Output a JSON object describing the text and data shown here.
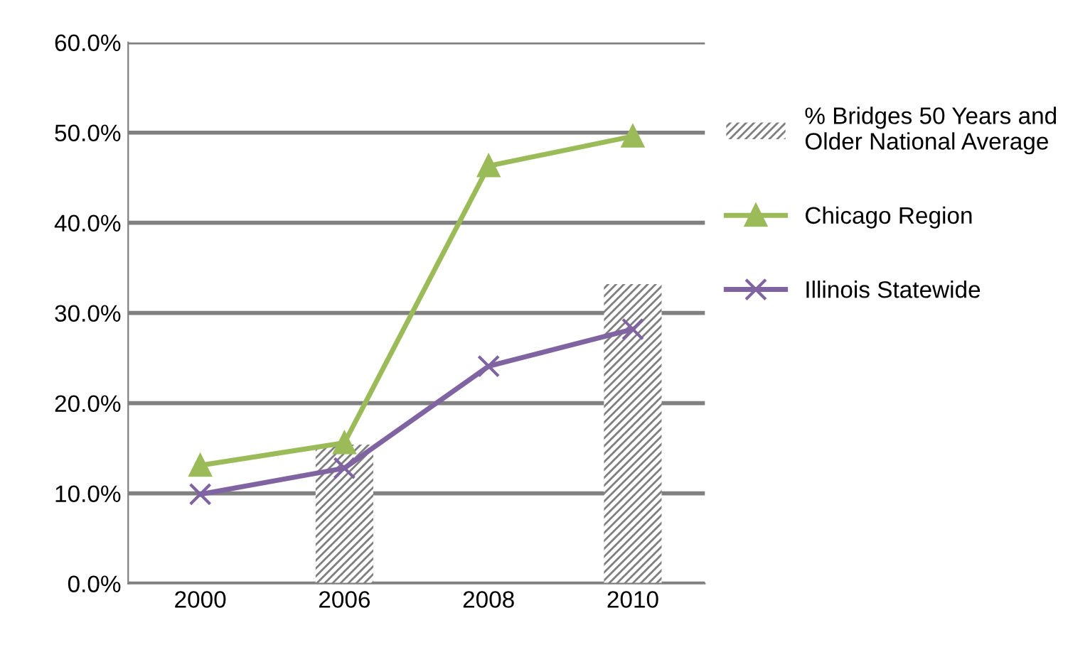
{
  "chart_data": {
    "type": "line",
    "categories": [
      "2000",
      "2006",
      "2008",
      "2010"
    ],
    "series": [
      {
        "name": "% Bridges 50 Years and Older National Average",
        "type": "bar",
        "color": "#7f7f7f",
        "values": [
          null,
          15.4,
          null,
          33.2
        ]
      },
      {
        "name": "Chicago Region",
        "color": "#9bbb59",
        "marker": "triangle",
        "values": [
          13.1,
          15.6,
          46.3,
          49.6
        ]
      },
      {
        "name": "Illinois Statewide",
        "color": "#8064a2",
        "marker": "cross",
        "values": [
          9.9,
          12.8,
          24.1,
          28.2
        ]
      }
    ],
    "ylim": [
      0,
      60
    ],
    "yticks": [
      {
        "value": 0,
        "label": "0.0%"
      },
      {
        "value": 10,
        "label": "10.0%"
      },
      {
        "value": 20,
        "label": "20.0%"
      },
      {
        "value": 30,
        "label": "30.0%"
      },
      {
        "value": 40,
        "label": "40.0%"
      },
      {
        "value": 50,
        "label": "50.0%"
      },
      {
        "value": 60,
        "label": "60.0%"
      }
    ],
    "grid": "y",
    "legend": "right",
    "line_style": "solid"
  }
}
